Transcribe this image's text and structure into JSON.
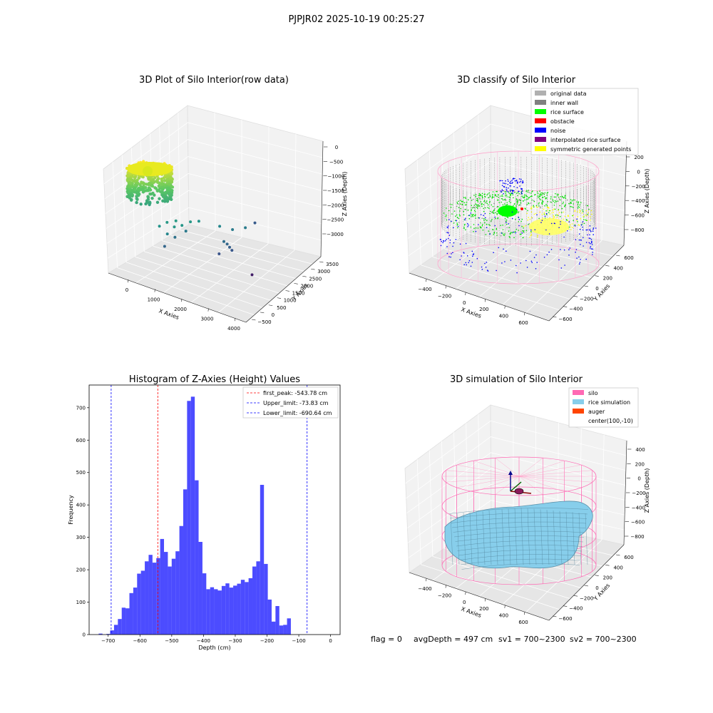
{
  "figure": {
    "suptitle": "PJPJR02 2025-10-19 00:25:27",
    "status": {
      "flag": "flag = 0",
      "avg_depth": "avgDepth = 497 cm",
      "sv1": "sv1 = 700~2300",
      "sv2": "sv2 = 700~2300"
    }
  },
  "chart_data": [
    {
      "type": "scatter",
      "projection": "3d",
      "title": "3D Plot of Silo Interior(row data)",
      "xlabel": "X Axies",
      "ylabel": "Y Axies",
      "zlabel": "Z Axies (Depth)",
      "xticks": [
        "0",
        "1000",
        "2000",
        "3000",
        "4000"
      ],
      "yticks": [
        "−500",
        "0",
        "500",
        "1000",
        "1500",
        "2000",
        "2500",
        "3000",
        "3500"
      ],
      "zticks": [
        "0",
        "−500",
        "−1000",
        "−1500",
        "−2000",
        "−2500",
        "−3000"
      ],
      "xlim": [
        -500,
        4000
      ],
      "ylim": [
        -700,
        3600
      ],
      "zlim": [
        -3300,
        200
      ],
      "colormap": "viridis",
      "points": [
        {
          "x": 1180,
          "y": -300,
          "z": -1420
        },
        {
          "x": 1350,
          "y": -100,
          "z": -1400
        },
        {
          "x": 1450,
          "y": -350,
          "z": -1450
        },
        {
          "x": 1550,
          "y": -100,
          "z": -1470
        },
        {
          "x": 1650,
          "y": 200,
          "z": -1450
        },
        {
          "x": 1250,
          "y": -400,
          "z": -1700
        },
        {
          "x": 1750,
          "y": 500,
          "z": -1520
        },
        {
          "x": 1050,
          "y": -500,
          "z": -1500
        },
        {
          "x": 1200,
          "y": 100,
          "z": -2000
        },
        {
          "x": 1100,
          "y": -300,
          "z": -2150
        },
        {
          "x": 1380,
          "y": 400,
          "z": -1880
        },
        {
          "x": 2200,
          "y": 900,
          "z": -1700
        },
        {
          "x": 2450,
          "y": 1200,
          "z": -1850
        },
        {
          "x": 2400,
          "y": 800,
          "z": -2050
        },
        {
          "x": 2450,
          "y": 900,
          "z": -2150
        },
        {
          "x": 2500,
          "y": 950,
          "z": -2250
        },
        {
          "x": 2550,
          "y": 1000,
          "z": -2350
        },
        {
          "x": 2300,
          "y": 700,
          "z": -2400
        },
        {
          "x": 2700,
          "y": 1500,
          "z": -1850
        },
        {
          "x": 2300,
          "y": 2700,
          "z": -2300
        },
        {
          "x": 3100,
          "y": 1200,
          "z": -3000
        }
      ]
    },
    {
      "type": "scatter",
      "projection": "3d",
      "title": "3D classify of Silo Interior",
      "xlabel": "X Axies",
      "ylabel": "Y Axies",
      "zlabel": "Z Axies (Depth)",
      "xticks": [
        "−400",
        "−200",
        "0",
        "200",
        "400",
        "600"
      ],
      "yticks": [
        "−600",
        "−400",
        "−200",
        "0",
        "200",
        "400",
        "600"
      ],
      "zticks": [
        "200",
        "0",
        "−200",
        "−400",
        "−600",
        "−800"
      ],
      "xlim": [
        -550,
        750
      ],
      "ylim": [
        -700,
        700
      ],
      "zlim": [
        -900,
        250
      ],
      "legend_position": "upper right",
      "legend": [
        {
          "label": "original data",
          "color": "#b0b0b0"
        },
        {
          "label": "inner wall",
          "color": "#808080"
        },
        {
          "label": "rice surface",
          "color": "#00ff00"
        },
        {
          "label": "obstacle",
          "color": "#ff0000"
        },
        {
          "label": "noise",
          "color": "#0000ff"
        },
        {
          "label": "interpolated rice surface",
          "color": "#800080"
        },
        {
          "label": "symmetric generated points",
          "color": "#ffff00"
        }
      ]
    },
    {
      "type": "bar",
      "subtype": "histogram",
      "title": "Histogram of Z-Axies (Height) Values",
      "xlabel": "Depth (cm)",
      "ylabel": "Frequency",
      "xticks": [
        "−700",
        "−600",
        "−500",
        "−400",
        "−300",
        "−200",
        "−100",
        "0"
      ],
      "yticks": [
        "0",
        "100",
        "200",
        "300",
        "400",
        "500",
        "600",
        "700"
      ],
      "xlim": [
        -760,
        30
      ],
      "ylim": [
        0,
        770
      ],
      "bar_color": "#0000ff",
      "legend_position": "upper right",
      "bins_start": -730,
      "bin_width": 12.1,
      "values": [
        3,
        0,
        2,
        13,
        30,
        48,
        83,
        81,
        128,
        145,
        188,
        197,
        226,
        246,
        222,
        236,
        295,
        255,
        210,
        234,
        257,
        335,
        448,
        721,
        734,
        476,
        286,
        189,
        140,
        146,
        140,
        136,
        150,
        158,
        145,
        151,
        157,
        169,
        162,
        174,
        210,
        226,
        462,
        218,
        108,
        40,
        88,
        28,
        30,
        50
      ],
      "lines": [
        {
          "label": "first_peak: -543.78 cm",
          "x": -543.78,
          "color": "#ff0000"
        },
        {
          "label": "Upper_limit: -73.83 cm",
          "x": -73.83,
          "color": "#0000ff"
        },
        {
          "label": "Lower_limit: -690.64 cm",
          "x": -690.64,
          "color": "#0000ff"
        }
      ]
    },
    {
      "type": "surface",
      "projection": "3d",
      "title": "3D simulation of Silo Interior",
      "xlabel": "X Axies",
      "ylabel": "Y Axies",
      "zlabel": "Z Axies (Depth)",
      "xticks": [
        "−400",
        "−200",
        "0",
        "200",
        "400",
        "600"
      ],
      "yticks": [
        "−600",
        "−400",
        "−200",
        "0",
        "200",
        "400",
        "600"
      ],
      "zticks": [
        "400",
        "200",
        "0",
        "−200",
        "−400",
        "−600",
        "−800"
      ],
      "xlim": [
        -550,
        750
      ],
      "ylim": [
        -700,
        700
      ],
      "zlim": [
        -900,
        480
      ],
      "legend_position": "upper right",
      "legend": [
        {
          "label": "silo",
          "color": "#ff69b4"
        },
        {
          "label": "rice simulation",
          "color": "#87ceeb"
        },
        {
          "label": "auger",
          "color": "#ff4500"
        },
        {
          "label": "center(100,-10)",
          "color": "#ffffff"
        }
      ]
    }
  ]
}
